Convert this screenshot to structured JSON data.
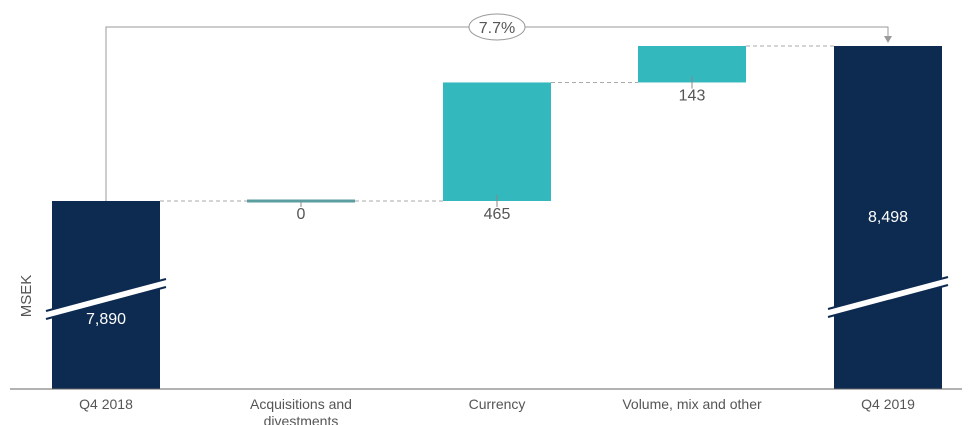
{
  "chart_data": {
    "type": "waterfall",
    "ylabel": "MSEK",
    "categories": [
      "Q4 2018",
      "Acquisitions and\ndivestments",
      "Currency",
      "Volume, mix and other",
      "Q4 2019"
    ],
    "steps": [
      {
        "category": "Q4 2018",
        "kind": "total",
        "value": 7890,
        "label": "7,890"
      },
      {
        "category": "Acquisitions and divestments",
        "kind": "delta",
        "value": 0,
        "label": "0"
      },
      {
        "category": "Currency",
        "kind": "delta",
        "value": 465,
        "label": "465"
      },
      {
        "category": "Volume, mix and other",
        "kind": "delta",
        "value": 143,
        "label": "143"
      },
      {
        "category": "Q4 2019",
        "kind": "total",
        "value": 8498,
        "label": "8,498"
      }
    ],
    "change_label": "7.7%",
    "axis_break": true,
    "colors": {
      "total": "#0d2a50",
      "delta": "#33b8bd",
      "connector": "#aaaaaa",
      "text": "#555555",
      "axis": "#666666"
    }
  }
}
